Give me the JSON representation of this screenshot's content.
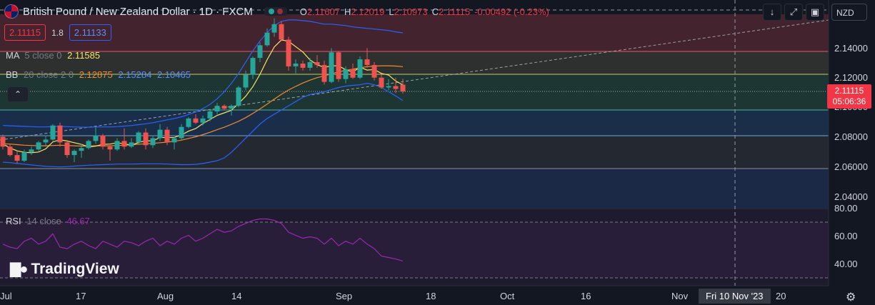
{
  "header": {
    "symbol_title": "British Pound / New Zealand Dollar · 1D · FXCM",
    "ohlc": [
      {
        "k": "O",
        "v": "2.11607"
      },
      {
        "k": "H",
        "v": "2.12019"
      },
      {
        "k": "L",
        "v": "2.10973"
      },
      {
        "k": "C",
        "v": "2.11115"
      },
      {
        "k": "",
        "v": "-0.00492 (-0.23%)"
      }
    ]
  },
  "trade": {
    "sell_price": "2.11115",
    "spread": "1.8",
    "buy_price": "2.11133"
  },
  "indicators": {
    "ma": {
      "label": "MA",
      "params": "5 close 0",
      "value": "2.11585"
    },
    "bb": {
      "label": "BB",
      "params": "20 close 2 0",
      "basis": "2.12875",
      "upper": "2.15284",
      "lower": "2.10465"
    },
    "rsi": {
      "label": "RSI",
      "params": "14 close",
      "value": "46.67"
    }
  },
  "toolbar": {
    "currency": "NZD"
  },
  "price_axis": {
    "labels": [
      "2.14000",
      "2.12000",
      "2.10000",
      "2.08000",
      "2.06000",
      "2.04000"
    ],
    "last_price": "2.11115",
    "countdown": "05:06:36"
  },
  "rsi_axis": {
    "labels": [
      "80.00",
      "60.00",
      "40.00"
    ]
  },
  "time_axis": {
    "labels": [
      "Jul",
      "17",
      "Aug",
      "14",
      "Sep",
      "18",
      "Oct",
      "16",
      "Nov",
      "20"
    ],
    "crosshair_label": "Fri 10 Nov '23"
  },
  "watermark": "TradingView",
  "colors": {
    "up": "#26a69a",
    "down": "#ef5350",
    "ma": "#f5e663",
    "bb_basis": "#f28a2e",
    "bb_band": "#2962ff",
    "rsi": "#9c27b0",
    "accent_last": "#f23645"
  },
  "chart_data": {
    "type": "candlestick",
    "ylim": [
      2.028,
      2.166
    ],
    "candles": [
      {
        "o": 2.079,
        "h": 2.0805,
        "l": 2.07,
        "c": 2.072
      },
      {
        "o": 2.072,
        "h": 2.074,
        "l": 2.065,
        "c": 2.066
      },
      {
        "o": 2.066,
        "h": 2.069,
        "l": 2.06,
        "c": 2.062
      },
      {
        "o": 2.062,
        "h": 2.07,
        "l": 2.061,
        "c": 2.068
      },
      {
        "o": 2.068,
        "h": 2.072,
        "l": 2.066,
        "c": 2.07
      },
      {
        "o": 2.07,
        "h": 2.076,
        "l": 2.069,
        "c": 2.075
      },
      {
        "o": 2.075,
        "h": 2.08,
        "l": 2.072,
        "c": 2.077
      },
      {
        "o": 2.077,
        "h": 2.088,
        "l": 2.076,
        "c": 2.087
      },
      {
        "o": 2.087,
        "h": 2.089,
        "l": 2.072,
        "c": 2.075
      },
      {
        "o": 2.075,
        "h": 2.076,
        "l": 2.064,
        "c": 2.066
      },
      {
        "o": 2.066,
        "h": 2.07,
        "l": 2.061,
        "c": 2.069
      },
      {
        "o": 2.069,
        "h": 2.074,
        "l": 2.064,
        "c": 2.071
      },
      {
        "o": 2.071,
        "h": 2.077,
        "l": 2.07,
        "c": 2.076
      },
      {
        "o": 2.076,
        "h": 2.086,
        "l": 2.074,
        "c": 2.08
      },
      {
        "o": 2.08,
        "h": 2.081,
        "l": 2.07,
        "c": 2.072
      },
      {
        "o": 2.072,
        "h": 2.073,
        "l": 2.062,
        "c": 2.07
      },
      {
        "o": 2.07,
        "h": 2.078,
        "l": 2.069,
        "c": 2.076
      },
      {
        "o": 2.076,
        "h": 2.085,
        "l": 2.07,
        "c": 2.072
      },
      {
        "o": 2.072,
        "h": 2.078,
        "l": 2.071,
        "c": 2.075
      },
      {
        "o": 2.075,
        "h": 2.083,
        "l": 2.074,
        "c": 2.082
      },
      {
        "o": 2.082,
        "h": 2.085,
        "l": 2.07,
        "c": 2.073
      },
      {
        "o": 2.073,
        "h": 2.08,
        "l": 2.071,
        "c": 2.078
      },
      {
        "o": 2.078,
        "h": 2.088,
        "l": 2.076,
        "c": 2.084
      },
      {
        "o": 2.084,
        "h": 2.086,
        "l": 2.073,
        "c": 2.075
      },
      {
        "o": 2.075,
        "h": 2.079,
        "l": 2.07,
        "c": 2.078
      },
      {
        "o": 2.078,
        "h": 2.088,
        "l": 2.077,
        "c": 2.086
      },
      {
        "o": 2.086,
        "h": 2.093,
        "l": 2.085,
        "c": 2.092
      },
      {
        "o": 2.092,
        "h": 2.095,
        "l": 2.088,
        "c": 2.089
      },
      {
        "o": 2.089,
        "h": 2.094,
        "l": 2.087,
        "c": 2.092
      },
      {
        "o": 2.092,
        "h": 2.098,
        "l": 2.09,
        "c": 2.097
      },
      {
        "o": 2.097,
        "h": 2.103,
        "l": 2.095,
        "c": 2.101
      },
      {
        "o": 2.101,
        "h": 2.102,
        "l": 2.098,
        "c": 2.099
      },
      {
        "o": 2.099,
        "h": 2.102,
        "l": 2.094,
        "c": 2.101
      },
      {
        "o": 2.101,
        "h": 2.115,
        "l": 2.1,
        "c": 2.114
      },
      {
        "o": 2.114,
        "h": 2.126,
        "l": 2.112,
        "c": 2.123
      },
      {
        "o": 2.123,
        "h": 2.136,
        "l": 2.12,
        "c": 2.135
      },
      {
        "o": 2.135,
        "h": 2.146,
        "l": 2.132,
        "c": 2.144
      },
      {
        "o": 2.144,
        "h": 2.156,
        "l": 2.143,
        "c": 2.153
      },
      {
        "o": 2.153,
        "h": 2.163,
        "l": 2.15,
        "c": 2.159
      },
      {
        "o": 2.159,
        "h": 2.161,
        "l": 2.147,
        "c": 2.148
      },
      {
        "o": 2.148,
        "h": 2.15,
        "l": 2.126,
        "c": 2.129
      },
      {
        "o": 2.129,
        "h": 2.134,
        "l": 2.124,
        "c": 2.131
      },
      {
        "o": 2.131,
        "h": 2.133,
        "l": 2.126,
        "c": 2.128
      },
      {
        "o": 2.128,
        "h": 2.135,
        "l": 2.126,
        "c": 2.132
      },
      {
        "o": 2.132,
        "h": 2.137,
        "l": 2.128,
        "c": 2.13
      },
      {
        "o": 2.13,
        "h": 2.133,
        "l": 2.116,
        "c": 2.118
      },
      {
        "o": 2.118,
        "h": 2.142,
        "l": 2.117,
        "c": 2.139
      },
      {
        "o": 2.139,
        "h": 2.14,
        "l": 2.118,
        "c": 2.12
      },
      {
        "o": 2.12,
        "h": 2.129,
        "l": 2.117,
        "c": 2.127
      },
      {
        "o": 2.127,
        "h": 2.131,
        "l": 2.12,
        "c": 2.121
      },
      {
        "o": 2.121,
        "h": 2.136,
        "l": 2.12,
        "c": 2.134
      },
      {
        "o": 2.134,
        "h": 2.142,
        "l": 2.128,
        "c": 2.13
      },
      {
        "o": 2.13,
        "h": 2.132,
        "l": 2.119,
        "c": 2.121
      },
      {
        "o": 2.121,
        "h": 2.123,
        "l": 2.113,
        "c": 2.114
      },
      {
        "o": 2.114,
        "h": 2.12,
        "l": 2.112,
        "c": 2.115
      },
      {
        "o": 2.115,
        "h": 2.121,
        "l": 2.11,
        "c": 2.113
      },
      {
        "o": 2.116,
        "h": 2.1202,
        "l": 2.1097,
        "c": 2.1112
      }
    ],
    "ma5": [
      2.074,
      2.071,
      2.069,
      2.068,
      2.0676,
      2.0682,
      2.0704,
      2.0754,
      2.0768,
      2.076,
      2.0748,
      2.0736,
      2.0718,
      2.0724,
      2.0736,
      2.0738,
      2.0748,
      2.074,
      2.073,
      2.075,
      2.0762,
      2.076,
      2.0786,
      2.0784,
      2.0786,
      2.0802,
      2.083,
      2.0848,
      2.0884,
      2.0912,
      2.0942,
      2.096,
      2.0978,
      2.1026,
      2.1078,
      2.1146,
      2.1234,
      2.1338,
      2.1428,
      2.1478,
      2.1468,
      2.143,
      2.1392,
      2.1336,
      2.1302,
      2.1282,
      2.1294,
      2.1294,
      2.1266,
      2.125,
      2.1284,
      2.1264,
      2.1268,
      2.124,
      2.1228,
      2.1186,
      2.1158
    ],
    "bb_basis": [
      2.074,
      2.0738,
      2.0734,
      2.073,
      2.0728,
      2.0726,
      2.0726,
      2.0728,
      2.073,
      2.0728,
      2.0726,
      2.0724,
      2.0724,
      2.0726,
      2.0726,
      2.0726,
      2.0728,
      2.073,
      2.0733,
      2.0737,
      2.074,
      2.0743,
      2.0748,
      2.0752,
      2.0758,
      2.0766,
      2.0778,
      2.079,
      2.0805,
      2.0822,
      2.084,
      2.0858,
      2.0878,
      2.09,
      2.0926,
      2.0956,
      2.0988,
      2.1022,
      2.1058,
      2.1092,
      2.1122,
      2.1148,
      2.1172,
      2.1192,
      2.121,
      2.1222,
      2.1238,
      2.125,
      2.1262,
      2.127,
      2.128,
      2.1288,
      2.1292,
      2.1294,
      2.1294,
      2.1292,
      2.1288
    ],
    "bb_upper": [
      2.087,
      2.0868,
      2.0866,
      2.0864,
      2.0862,
      2.086,
      2.086,
      2.0862,
      2.0864,
      2.0862,
      2.086,
      2.0858,
      2.0858,
      2.086,
      2.086,
      2.086,
      2.0862,
      2.0866,
      2.087,
      2.0876,
      2.0882,
      2.089,
      2.09,
      2.091,
      2.092,
      2.0932,
      2.0948,
      2.0966,
      2.099,
      2.102,
      2.106,
      2.111,
      2.117,
      2.124,
      2.132,
      2.14,
      2.147,
      2.153,
      2.158,
      2.161,
      2.162,
      2.162,
      2.1615,
      2.161,
      2.16,
      2.159,
      2.159,
      2.1585,
      2.158,
      2.157,
      2.1565,
      2.156,
      2.1555,
      2.155,
      2.1545,
      2.1535,
      2.1528
    ],
    "bb_lower": [
      2.061,
      2.0606,
      2.06,
      2.0595,
      2.059,
      2.0585,
      2.058,
      2.0578,
      2.0576,
      2.0578,
      2.0582,
      2.0585,
      2.0588,
      2.059,
      2.0592,
      2.0594,
      2.0596,
      2.0596,
      2.0596,
      2.0597,
      2.0598,
      2.0598,
      2.0598,
      2.0596,
      2.0594,
      2.0592,
      2.0592,
      2.0594,
      2.06,
      2.061,
      2.062,
      2.064,
      2.068,
      2.073,
      2.078,
      2.083,
      2.088,
      2.092,
      2.095,
      2.098,
      2.101,
      2.104,
      2.107,
      2.109,
      2.11,
      2.111,
      2.1125,
      2.114,
      2.115,
      2.1155,
      2.116,
      2.117,
      2.116,
      2.114,
      2.111,
      2.108,
      2.1047
    ],
    "rsi_ylim": [
      30,
      82
    ],
    "rsi": [
      58,
      56,
      55,
      60,
      62,
      58,
      60,
      65,
      56,
      55,
      58,
      60,
      57,
      55,
      60,
      58,
      56,
      60,
      59,
      57,
      60,
      62,
      57,
      60,
      58,
      62,
      64,
      60,
      62,
      65,
      68,
      66,
      67,
      70,
      72,
      74,
      75,
      75,
      74,
      72,
      66,
      64,
      62,
      63,
      62,
      58,
      62,
      57,
      60,
      58,
      62,
      58,
      55,
      50,
      49,
      48,
      46.67
    ]
  }
}
